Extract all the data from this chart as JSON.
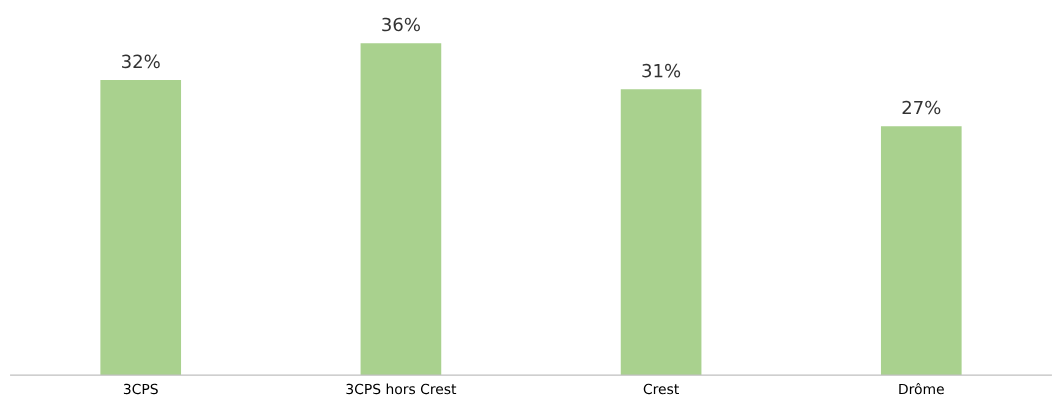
{
  "chart_data": {
    "type": "bar",
    "categories": [
      "3CPS",
      "3CPS hors Crest",
      "Crest",
      "Drôme"
    ],
    "values": [
      32,
      36,
      31,
      27
    ],
    "value_labels": [
      "32%",
      "36%",
      "31%",
      "27%"
    ],
    "color": "#a9d18e",
    "grid": false,
    "legend": false
  }
}
